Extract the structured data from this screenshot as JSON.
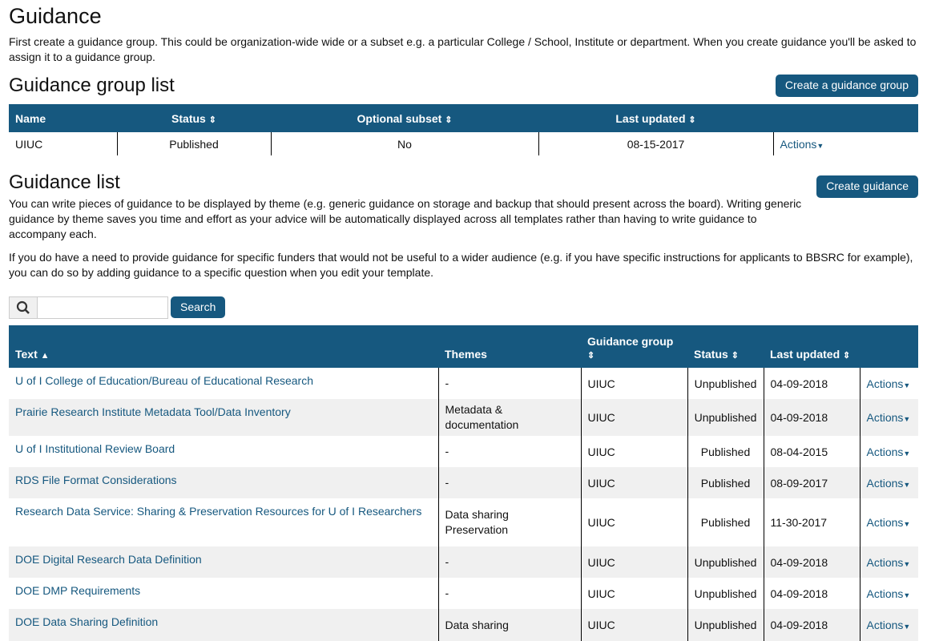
{
  "page": {
    "title": "Guidance",
    "intro": "First create a guidance group. This could be organization-wide wide or a subset e.g. a particular College / School, Institute or department. When you create guidance you'll be asked to assign it to a guidance group."
  },
  "group_list": {
    "title": "Guidance group list",
    "create_label": "Create a guidance group",
    "columns": [
      "Name",
      "Status",
      "Optional subset",
      "Last updated",
      ""
    ],
    "rows": [
      {
        "name": "UIUC",
        "status": "Published",
        "subset": "No",
        "updated": "08-15-2017",
        "actions": "Actions"
      }
    ]
  },
  "guidance_list": {
    "title": "Guidance list",
    "create_label": "Create guidance",
    "desc1": "You can write pieces of guidance to be displayed by theme (e.g. generic guidance on storage and backup that should present across the board). Writing generic guidance by theme saves you time and effort as your advice will be automatically displayed across all templates rather than having to write guidance to accompany each.",
    "desc2": "If you do have a need to provide guidance for specific funders that would not be useful to a wider audience (e.g. if you have specific instructions for applicants to BBSRC for example), you can do so by adding guidance to a specific question when you edit your template.",
    "search": {
      "value": "",
      "button": "Search"
    },
    "columns": [
      "Text",
      "Themes",
      "Guidance group",
      "Status",
      "Last updated",
      ""
    ],
    "rows": [
      {
        "text": "U of I College of Education/Bureau of Educational Research",
        "themes": "-",
        "group": "UIUC",
        "status": "Unpublished",
        "updated": "04-09-2018",
        "actions": "Actions"
      },
      {
        "text": "Prairie Research Institute Metadata Tool/Data Inventory",
        "themes": "Metadata & documentation",
        "group": "UIUC",
        "status": "Unpublished",
        "updated": "04-09-2018",
        "actions": "Actions"
      },
      {
        "text": "U of I Institutional Review Board",
        "themes": "-",
        "group": "UIUC",
        "status": "Published",
        "updated": "08-04-2015",
        "actions": "Actions"
      },
      {
        "text": "RDS File Format Considerations",
        "themes": "-",
        "group": "UIUC",
        "status": "Published",
        "updated": "08-09-2017",
        "actions": "Actions"
      },
      {
        "text": "Research Data Service: Sharing & Preservation Resources for U of I Researchers",
        "themes": "Data sharing Preservation",
        "group": "UIUC",
        "status": "Published",
        "updated": "11-30-2017",
        "actions": "Actions"
      },
      {
        "text": "DOE Digital Research Data Definition",
        "themes": "-",
        "group": "UIUC",
        "status": "Unpublished",
        "updated": "04-09-2018",
        "actions": "Actions"
      },
      {
        "text": "DOE DMP Requirements",
        "themes": "-",
        "group": "UIUC",
        "status": "Unpublished",
        "updated": "04-09-2018",
        "actions": "Actions"
      },
      {
        "text": "DOE Data Sharing Definition",
        "themes": "Data sharing",
        "group": "UIUC",
        "status": "Unpublished",
        "updated": "04-09-2018",
        "actions": "Actions"
      }
    ]
  },
  "colors": {
    "header": "#16587f",
    "stripe": "#f0f0f0"
  }
}
